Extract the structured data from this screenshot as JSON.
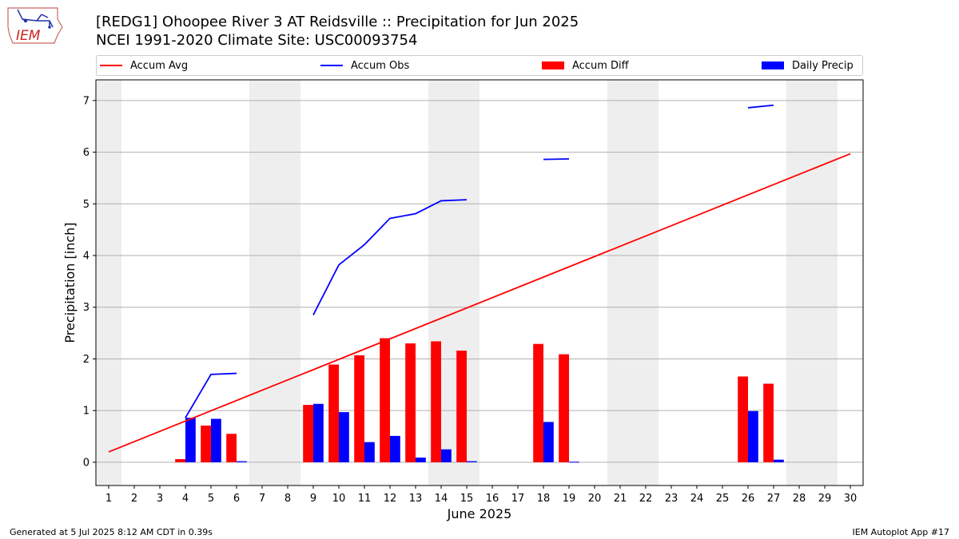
{
  "header": {
    "title_line1": "[REDG1] Ohoopee River 3 AT Reidsville :: Precipitation for Jun 2025",
    "title_line2": "NCEI 1991-2020 Climate Site: USC00093754"
  },
  "logo": {
    "text": "IEM"
  },
  "legend": {
    "items": [
      {
        "label": "Accum Avg",
        "color": "#ff0000",
        "kind": "line"
      },
      {
        "label": "Accum Obs",
        "color": "#0000ff",
        "kind": "line"
      },
      {
        "label": "Accum Diff",
        "color": "#ff0000",
        "kind": "bar"
      },
      {
        "label": "Daily Precip",
        "color": "#0000ff",
        "kind": "bar"
      }
    ]
  },
  "footer": {
    "generated": "Generated at 5 Jul 2025 8:12 AM CDT in 0.39s",
    "app": "IEM Autoplot App #17"
  },
  "chart_data": {
    "type": "bar",
    "xlabel": "June 2025",
    "ylabel": "Precipitation [inch]",
    "xlim": [
      0.5,
      30.5
    ],
    "ylim": [
      -0.45,
      7.4
    ],
    "yticks": [
      0,
      1,
      2,
      3,
      4,
      5,
      6,
      7
    ],
    "xticks": [
      1,
      2,
      3,
      4,
      5,
      6,
      7,
      8,
      9,
      10,
      11,
      12,
      13,
      14,
      15,
      16,
      17,
      18,
      19,
      20,
      21,
      22,
      23,
      24,
      25,
      26,
      27,
      28,
      29,
      30
    ],
    "grid": "horizontal",
    "weekend_days": [
      1,
      7,
      8,
      14,
      15,
      21,
      22,
      28,
      29
    ],
    "colors": {
      "avg": "#ff0000",
      "obs": "#0000ff",
      "diff": "#ff0000",
      "daily": "#0000ff",
      "weekend": "#eeeeee"
    },
    "accum_avg": {
      "name": "Accum Avg",
      "x": [
        1,
        30
      ],
      "y": [
        0.2,
        5.97
      ]
    },
    "accum_obs": {
      "name": "Accum Obs",
      "segments": [
        {
          "x": [
            4,
            5,
            6
          ],
          "y": [
            0.86,
            1.7,
            1.72
          ]
        },
        {
          "x": [
            9,
            10,
            11,
            12,
            13,
            14,
            15
          ],
          "y": [
            2.85,
            3.82,
            4.21,
            4.72,
            4.81,
            5.06,
            5.08
          ]
        },
        {
          "x": [
            18,
            19
          ],
          "y": [
            5.86,
            5.87
          ]
        },
        {
          "x": [
            26,
            27
          ],
          "y": [
            6.86,
            6.91
          ]
        }
      ]
    },
    "accum_diff": {
      "name": "Accum Diff",
      "x": [
        4,
        5,
        6,
        9,
        10,
        11,
        12,
        13,
        14,
        15,
        18,
        19,
        26,
        27
      ],
      "values": [
        0.06,
        0.71,
        0.55,
        1.11,
        1.89,
        2.07,
        2.4,
        2.3,
        2.34,
        2.16,
        2.29,
        2.09,
        1.66,
        1.52
      ]
    },
    "daily_precip": {
      "name": "Daily Precip",
      "x": [
        4,
        5,
        6,
        9,
        10,
        11,
        12,
        13,
        14,
        15,
        18,
        19,
        26,
        27
      ],
      "values": [
        0.86,
        0.84,
        0.02,
        1.13,
        0.97,
        0.39,
        0.51,
        0.09,
        0.25,
        0.02,
        0.78,
        0.01,
        0.99,
        0.05
      ]
    }
  }
}
